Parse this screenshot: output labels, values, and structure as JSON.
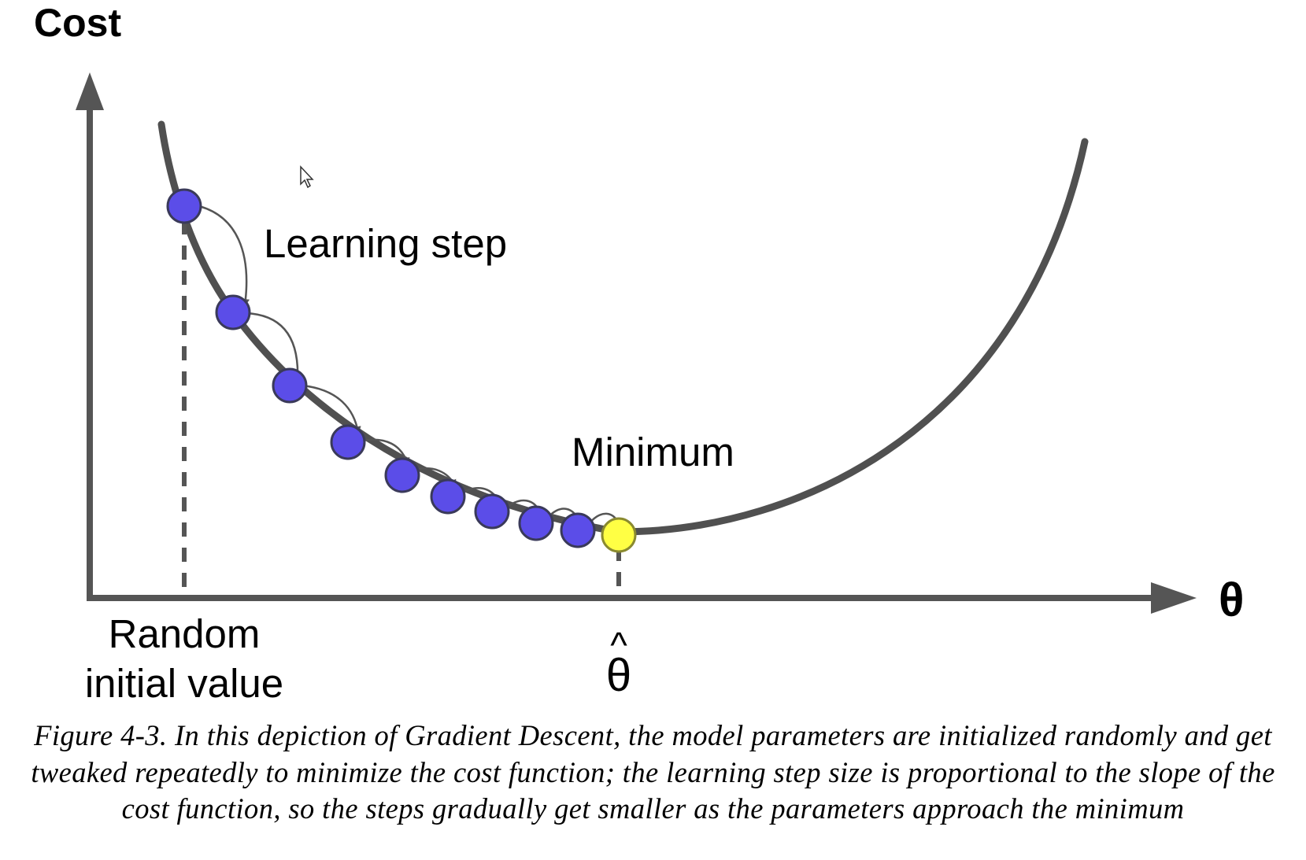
{
  "labels": {
    "y_axis": "Cost",
    "x_axis": "θ",
    "learning_step": "Learning step",
    "minimum": "Minimum",
    "random_line1": "Random",
    "random_line2": "initial value",
    "theta_hat": "θ",
    "theta_hat_accent": "^"
  },
  "colors": {
    "axis": "#555555",
    "curve": "#505050",
    "step_fill": "#5b4de8",
    "step_stroke": "#3a3a5a",
    "minimum_fill": "#ffff44",
    "minimum_stroke": "#8a8a30",
    "arrow": "#555555"
  },
  "caption": "Figure 4-3. In this depiction of Gradient Descent, the model parameters are initialized randomly and get tweaked repeatedly to minimize the cost function; the learning step size is proportional to the slope of the cost function, so the steps gradually get smaller as the parameters approach the minimum",
  "steps": {
    "count": 9,
    "description_items": [
      "step-1",
      "step-2",
      "step-3",
      "step-4",
      "step-5",
      "step-6",
      "step-7",
      "step-8",
      "step-9"
    ]
  }
}
